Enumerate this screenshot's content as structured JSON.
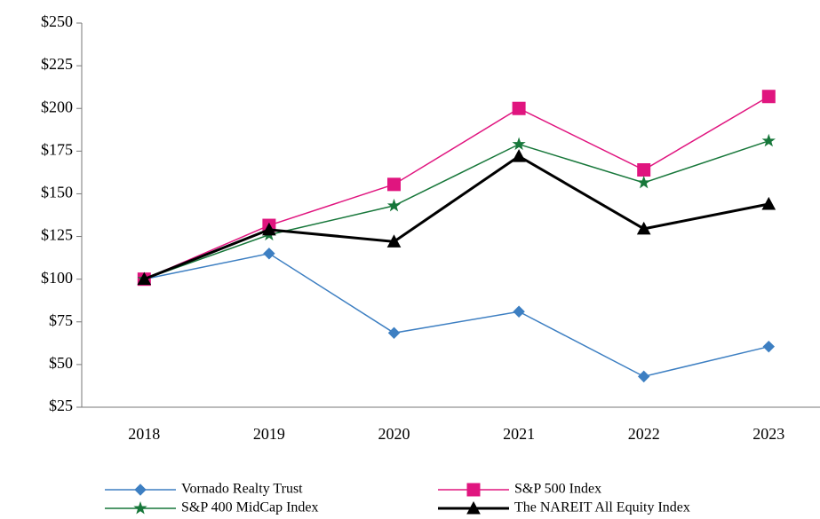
{
  "chart_data": {
    "type": "line",
    "categories": [
      "2018",
      "2019",
      "2020",
      "2021",
      "2022",
      "2023"
    ],
    "series": [
      {
        "name": "Vornado Realty Trust",
        "color": "#3d7fc2",
        "marker": "diamond",
        "width": 1.5,
        "values": [
          100,
          115,
          68.5,
          81,
          43,
          60.5
        ]
      },
      {
        "name": "S&P 500 Index",
        "color": "#e0157f",
        "marker": "square",
        "width": 1.5,
        "values": [
          100,
          131.5,
          155.5,
          200,
          164,
          207
        ]
      },
      {
        "name": "S&P 400 MidCap Index",
        "color": "#17773a",
        "marker": "star",
        "width": 1.5,
        "values": [
          100,
          126,
          143,
          179,
          156.5,
          181
        ]
      },
      {
        "name": "The NAREIT All Equity Index",
        "color": "#000000",
        "marker": "triangle",
        "width": 3,
        "values": [
          100,
          129,
          122,
          172,
          129.5,
          144
        ]
      }
    ],
    "ylim": [
      25,
      250
    ],
    "yticks": [
      {
        "value": 25,
        "label": "$25"
      },
      {
        "value": 50,
        "label": "$50"
      },
      {
        "value": 75,
        "label": "$75"
      },
      {
        "value": 100,
        "label": "$100"
      },
      {
        "value": 125,
        "label": "$125"
      },
      {
        "value": 150,
        "label": "$150"
      },
      {
        "value": 175,
        "label": "$175"
      },
      {
        "value": 200,
        "label": "$200"
      },
      {
        "value": 225,
        "label": "$225"
      },
      {
        "value": 250,
        "label": "$250"
      }
    ],
    "grid": false,
    "legend": "bottom"
  }
}
